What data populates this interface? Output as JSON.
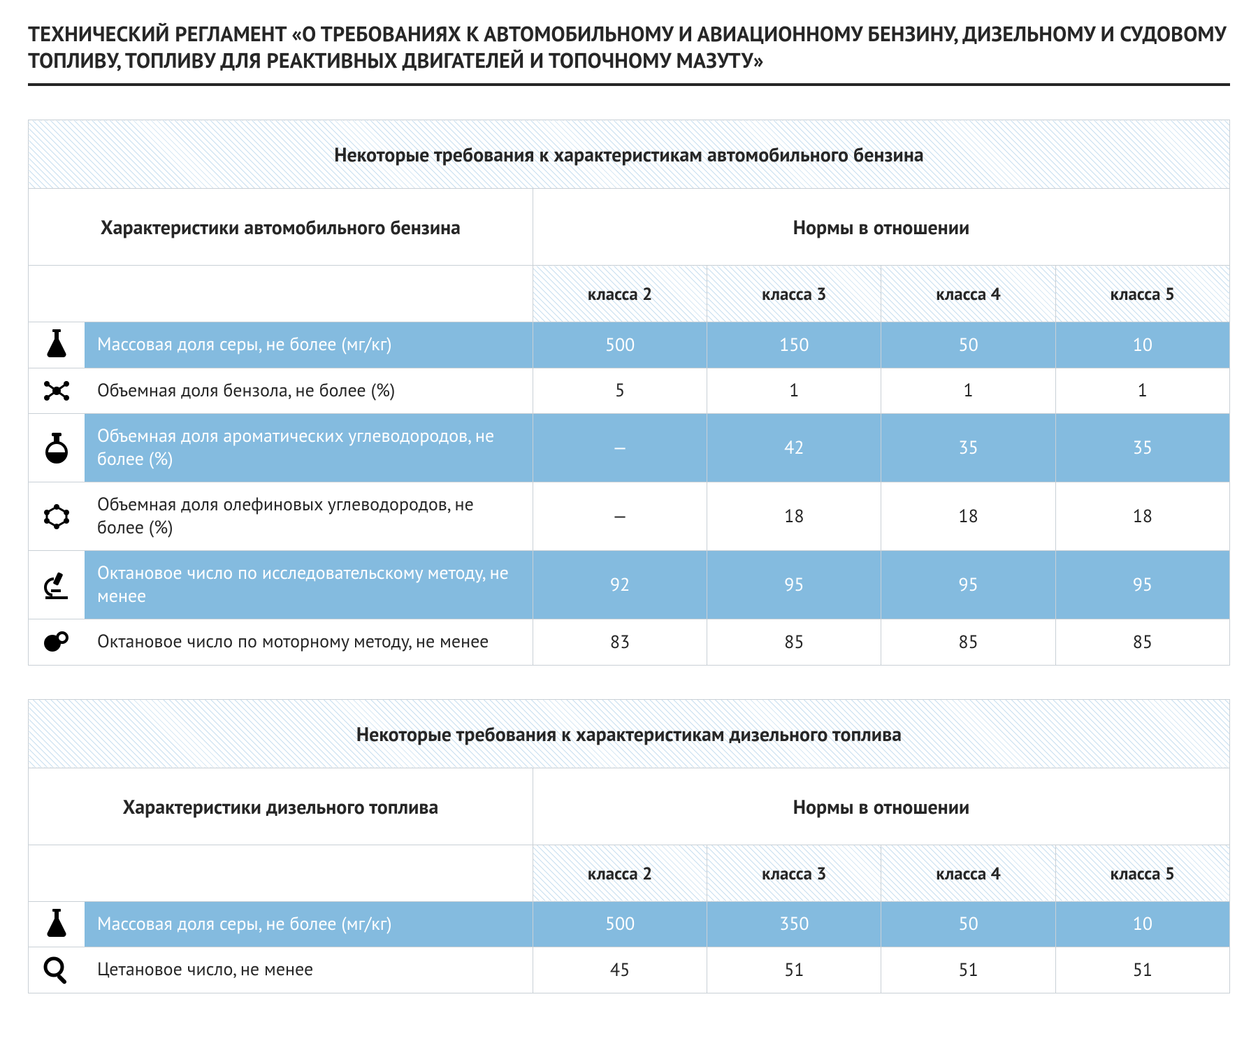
{
  "colors": {
    "accent_row": "#84bbdf",
    "hatch_light": "#c8dff0",
    "border": "#c9d0d6",
    "text": "#262626",
    "white": "#ffffff"
  },
  "doc_title": "ТЕХНИЧЕСКИЙ РЕГЛАМЕНТ  «О ТРЕБОВАНИЯХ К АВТОМОБИЛЬНОМУ И АВИАЦИОННОМУ БЕНЗИНУ, ДИЗЕЛЬНОМУ И СУДОВОМУ ТОПЛИВУ, ТОПЛИВУ ДЛЯ РЕАКТИВНЫХ ДВИГАТЕЛЕЙ И ТОПОЧНОМУ МАЗУТУ»",
  "col_label_width_pct": 42,
  "col_val_width_pct": 14.5,
  "tables": [
    {
      "title": "Некоторые требования к характеристикам автомобильного бензина",
      "char_header": "Характеристики автомобильного бензина",
      "norms_header": "Нормы в отношении",
      "class_headers": [
        "класса 2",
        "класса 3",
        "класса 4",
        "класса 5"
      ],
      "rows": [
        {
          "icon": "flask",
          "highlight": true,
          "label": "Массовая доля серы, не более (мг/кг)",
          "values": [
            "500",
            "150",
            "50",
            "10"
          ]
        },
        {
          "icon": "molecule1",
          "highlight": false,
          "label": "Объемная доля бензола, не более (%)",
          "values": [
            "5",
            "1",
            "1",
            "1"
          ]
        },
        {
          "icon": "round-flask",
          "highlight": true,
          "label": "Объемная доля ароматических углеводородов, не более (%)",
          "values": [
            "—",
            "42",
            "35",
            "35"
          ]
        },
        {
          "icon": "molecule2",
          "highlight": false,
          "label": "Объемная доля олефиновых углеводородов, не более (%)",
          "values": [
            "—",
            "18",
            "18",
            "18"
          ]
        },
        {
          "icon": "microscope",
          "highlight": true,
          "label": "Октановое число по исследовательскому методу, не менее",
          "values": [
            "92",
            "95",
            "95",
            "95"
          ]
        },
        {
          "icon": "orbits",
          "highlight": false,
          "label": "Октановое число по моторному методу, не менее",
          "values": [
            "83",
            "85",
            "85",
            "85"
          ]
        }
      ]
    },
    {
      "title": "Некоторые требования к характеристикам дизельного топлива",
      "char_header": "Характеристики дизельного топлива",
      "norms_header": "Нормы в отношении",
      "class_headers": [
        "класса 2",
        "класса 3",
        "класса 4",
        "класса 5"
      ],
      "rows": [
        {
          "icon": "flask",
          "highlight": true,
          "label": "Массовая доля серы, не более (мг/кг)",
          "values": [
            "500",
            "350",
            "50",
            "10"
          ]
        },
        {
          "icon": "magnifier",
          "highlight": false,
          "label": "Цетановое число, не менее",
          "values": [
            "45",
            "51",
            "51",
            "51"
          ]
        }
      ]
    }
  ]
}
